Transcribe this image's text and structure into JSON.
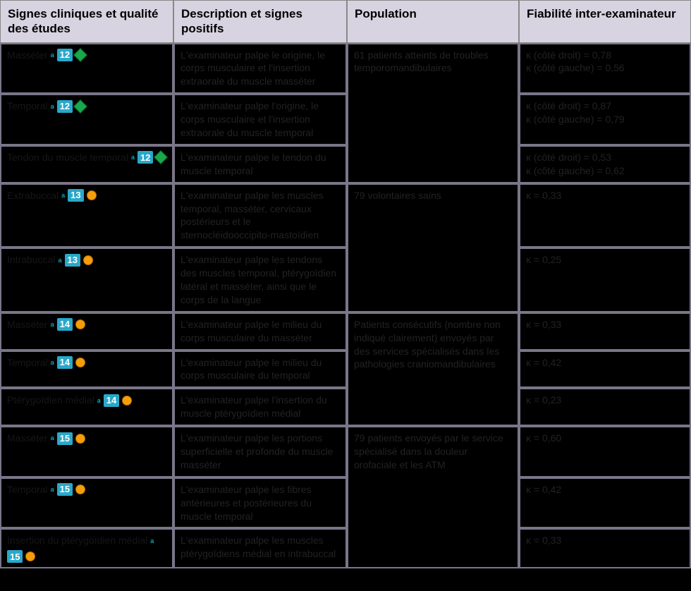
{
  "colors": {
    "header_bg": "#d7d3e0",
    "cell_bg": "#000000",
    "border": "#7a7688",
    "ref_bg": "#2aa8c9",
    "diamond": "#1aa84a",
    "circle": "#f59e0b"
  },
  "headers": {
    "c1": "Signes cliniques et qualité des études",
    "c2": "Description et signes positifs",
    "c3": "Population",
    "c4": "Fiabilité inter-examinateur"
  },
  "rows": [
    {
      "sign": "Masséter",
      "sup": "a",
      "ref": "12",
      "quality": "diamond",
      "desc": "L'examinateur palpe le origine, le corps musculaire et l'insertion extraorale du muscle masséter",
      "pop": "61 patients atteints de troubles temporomandibulaires",
      "fiab": "κ (côté droit) = 0,78\nκ (côté gauche) = 0,56"
    },
    {
      "sign": "Temporal",
      "sup": "a",
      "ref": "12",
      "quality": "diamond",
      "desc": "L'examinateur palpe l'origine, le corps musculaire et l'insertion extraorale du muscle temporal",
      "pop": null,
      "fiab": "κ (côté droit) = 0,87\nκ (côté gauche) = 0,79"
    },
    {
      "sign": "Tendon du muscle temporal",
      "sup": "a",
      "ref": "12",
      "quality": "diamond",
      "desc": "L'examinateur palpe le tendon du muscle temporal",
      "pop": null,
      "fiab": "κ (côté droit) = 0,53\nκ (côté gauche) = 0,62"
    },
    {
      "sign": "Extrabuccal",
      "sup": "a",
      "ref": "13",
      "quality": "circle",
      "desc": "L'examinateur palpe les muscles temporal, masséter, cervicaux postérieurs et le sternocléidooccipito-mastoïdien",
      "pop": "79 volontaires sains",
      "fiab": "κ = 0,33"
    },
    {
      "sign": "Intrabuccal",
      "sup": "a",
      "ref": "13",
      "quality": "circle",
      "desc": "L'examinateur palpe les tendons des muscles temporal, ptérygoïdien latéral et masséter, ainsi que le corps de la langue",
      "pop": null,
      "fiab": "κ = 0,25"
    },
    {
      "sign": "Masséter",
      "sup": "a",
      "ref": "14",
      "quality": "circle",
      "desc": "L'examinateur palpe le milieu du corps musculaire du masséter",
      "pop": "Patients consécutifs (nombre non indiqué clairement) envoyés par des services spécialisés dans les pathologies craniomandibulaires",
      "fiab": "κ = 0,33"
    },
    {
      "sign": "Temporal",
      "sup": "a",
      "ref": "14",
      "quality": "circle",
      "desc": "L'examinateur palpe le milieu du corps musculaire du temporal",
      "pop": null,
      "fiab": "κ = 0,42"
    },
    {
      "sign": "Ptérygoïdien médial",
      "sup": "a",
      "ref": "14",
      "quality": "circle",
      "desc": "L'examinateur palpe l'insertion du muscle ptérygoïdien médial",
      "pop": null,
      "fiab": "κ = 0,23"
    },
    {
      "sign": "Masséter",
      "sup": "a",
      "ref": "15",
      "quality": "circle",
      "desc": "L'examinateur palpe les portions superficielle et profonde du muscle masséter",
      "pop": "79 patients envoyés par le service spécialisé dans la douleur orofaciale et les ATM",
      "fiab": "κ = 0,60"
    },
    {
      "sign": "Temporal",
      "sup": "a",
      "ref": "15",
      "quality": "circle",
      "desc": "L'examinateur palpe les fibres antérieures et postérieures du muscle temporal",
      "pop": null,
      "fiab": "κ = 0,42"
    },
    {
      "sign": "Insertion du ptérygoïdien médial",
      "sup": "a",
      "ref": "15",
      "quality": "circle",
      "desc": "L'examinateur palpe les muscles ptérygoïdiens médial en intrabuccal",
      "pop": null,
      "fiab": "κ = 0,33"
    }
  ],
  "pop_spans": [
    3,
    2,
    3,
    3
  ]
}
